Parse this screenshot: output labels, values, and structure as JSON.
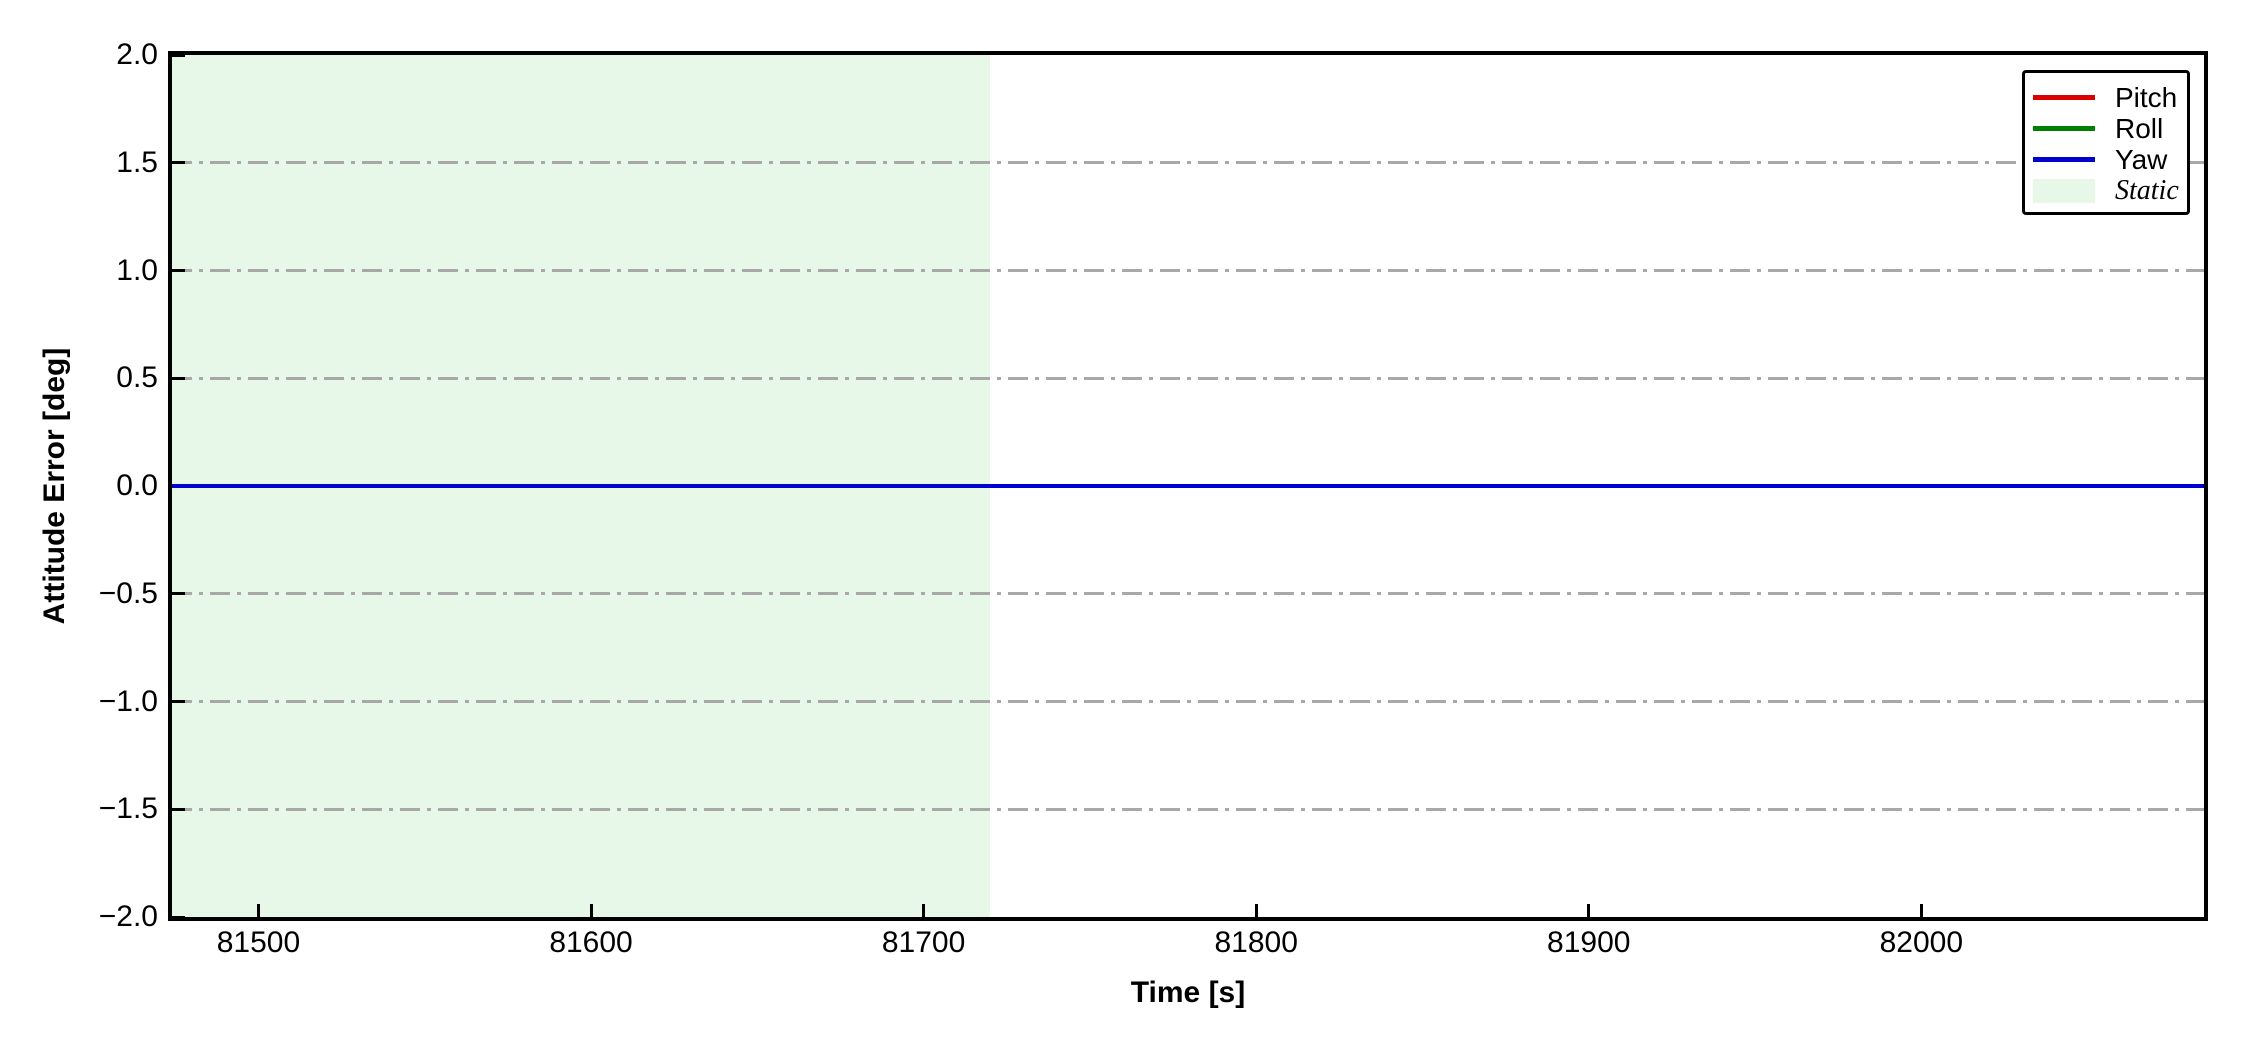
{
  "chart_data": {
    "type": "line",
    "title": "",
    "xlabel": "Time [s]",
    "ylabel": "Attitude Error [deg]",
    "xlim": [
      81474,
      82085
    ],
    "ylim": [
      -2.0,
      2.0
    ],
    "x_ticks": [
      {
        "value": 81500,
        "label": "81500"
      },
      {
        "value": 81600,
        "label": "81600"
      },
      {
        "value": 81700,
        "label": "81700"
      },
      {
        "value": 81800,
        "label": "81800"
      },
      {
        "value": 81900,
        "label": "81900"
      },
      {
        "value": 82000,
        "label": "82000"
      }
    ],
    "y_ticks": [
      {
        "value": 2.0,
        "label": "2.0"
      },
      {
        "value": 1.5,
        "label": "1.5"
      },
      {
        "value": 1.0,
        "label": "1.0"
      },
      {
        "value": 0.5,
        "label": "0.5"
      },
      {
        "value": 0.0,
        "label": "0.0"
      },
      {
        "value": -0.5,
        "label": "−0.5"
      },
      {
        "value": -1.0,
        "label": "−1.0"
      },
      {
        "value": -1.5,
        "label": "−1.5"
      },
      {
        "value": -2.0,
        "label": "−2.0"
      }
    ],
    "grid": {
      "axis": "y",
      "style": "dash-dot",
      "color": "#a8a8a8"
    },
    "axes": {
      "spine_color": "#000000",
      "tick_direction": "in",
      "background": "#ffffff"
    },
    "series": [
      {
        "name": "Pitch",
        "color": "#dd0000",
        "points": [
          [
            81474,
            0.0
          ],
          [
            82085,
            0.0
          ]
        ],
        "constant_value": 0.0
      },
      {
        "name": "Roll",
        "color": "#008000",
        "points": [
          [
            81474,
            0.0
          ],
          [
            82085,
            0.0
          ]
        ],
        "constant_value": 0.0
      },
      {
        "name": "Yaw",
        "color": "#0000d0",
        "points": [
          [
            81474,
            0.0
          ],
          [
            82085,
            0.0
          ]
        ],
        "constant_value": 0.0
      }
    ],
    "regions": [
      {
        "name": "Static",
        "x_start": 81474,
        "x_end": 81720,
        "fill_color": "#e7f8e9"
      }
    ],
    "legend": {
      "position": "upper right",
      "entries": [
        "Pitch",
        "Roll",
        "Yaw",
        "Static"
      ]
    }
  }
}
